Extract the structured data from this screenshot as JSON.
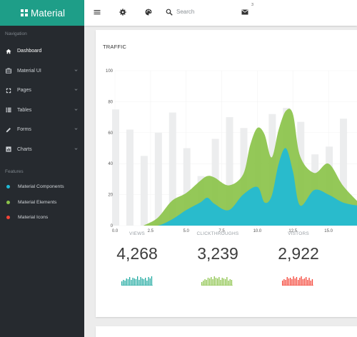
{
  "brand": {
    "name": "Material"
  },
  "sidebar": {
    "navigation_label": "Navigation",
    "items": [
      {
        "label": "Dashboard",
        "icon": "home-icon",
        "active": true,
        "has_submenu": false
      },
      {
        "label": "Material UI",
        "icon": "briefcase-icon",
        "active": false,
        "has_submenu": true
      },
      {
        "label": "Pages",
        "icon": "pages-icon",
        "active": false,
        "has_submenu": true
      },
      {
        "label": "Tables",
        "icon": "list-icon",
        "active": false,
        "has_submenu": true
      },
      {
        "label": "Forms",
        "icon": "pencil-icon",
        "active": false,
        "has_submenu": true
      },
      {
        "label": "Charts",
        "icon": "chart-icon",
        "active": false,
        "has_submenu": true
      }
    ],
    "features_label": "Features",
    "features": [
      {
        "label": "Material Components",
        "color": "#1fbad6"
      },
      {
        "label": "Material Elements",
        "color": "#8bc34a"
      },
      {
        "label": "Material Icons",
        "color": "#f44336"
      }
    ]
  },
  "topbar": {
    "menu_icon": "menu-icon",
    "settings_icon": "gear-icon",
    "palette_icon": "palette-icon",
    "search_icon": "search-icon",
    "search_placeholder": "Search",
    "mail_icon": "mail-icon",
    "mail_count": "3"
  },
  "traffic": {
    "title": "TRAFFIC",
    "stats": [
      {
        "label": "VIEWS",
        "value": "4,268",
        "color": "#1fa9a0"
      },
      {
        "label": "CLICKTHROUGHS",
        "value": "3,239",
        "color": "#8bc34a"
      },
      {
        "label": "VISTORS",
        "value": "2,922",
        "color": "#f44336"
      }
    ]
  },
  "colors": {
    "accent": "#1e9e88",
    "sidebar": "#262a2f",
    "green": "#8bc34a",
    "teal": "#1fbad6",
    "bar": "#eceeef"
  },
  "chart_data": {
    "type": "area",
    "ylim": [
      0,
      100
    ],
    "xlim": [
      0,
      17
    ],
    "yticks": [
      0,
      20,
      40,
      60,
      80,
      100
    ],
    "xticks": [
      "0.0",
      "2.5",
      "5.0",
      "7.5",
      "10.0",
      "12.5",
      "15.0"
    ],
    "xtick_values": [
      0,
      2.5,
      5,
      7.5,
      10,
      12.5,
      15
    ],
    "grid": true,
    "bars": {
      "x": [
        0,
        1,
        2,
        3,
        4,
        5,
        6,
        7,
        8,
        9,
        10,
        11,
        12,
        13,
        14,
        15,
        16
      ],
      "values": [
        75,
        62,
        45,
        60,
        73,
        50,
        32,
        56,
        70,
        63,
        60,
        72,
        76,
        67,
        46,
        51,
        69
      ]
    },
    "series": [
      {
        "color": "#8bc34a",
        "x": [
          2,
          3,
          4,
          5,
          6,
          6.5,
          7,
          8,
          9,
          9.5,
          10,
          10.5,
          11,
          11.5,
          12,
          12.5,
          13,
          14,
          15,
          16,
          17
        ],
        "values": [
          0,
          5,
          16,
          21,
          29,
          32,
          31,
          26,
          33,
          52,
          63,
          59,
          44,
          62,
          74,
          72,
          45,
          34,
          40,
          26,
          16
        ]
      },
      {
        "color": "#1fbad6",
        "x": [
          2,
          3,
          4,
          5,
          6,
          6.5,
          7,
          8,
          9,
          10,
          10.5,
          11,
          11.5,
          12,
          12.5,
          13,
          14,
          15,
          16,
          17
        ],
        "values": [
          0,
          0,
          4,
          10,
          15,
          18,
          14,
          10,
          20,
          25,
          15,
          19,
          40,
          50,
          35,
          13,
          23,
          20,
          15,
          13
        ]
      }
    ]
  }
}
